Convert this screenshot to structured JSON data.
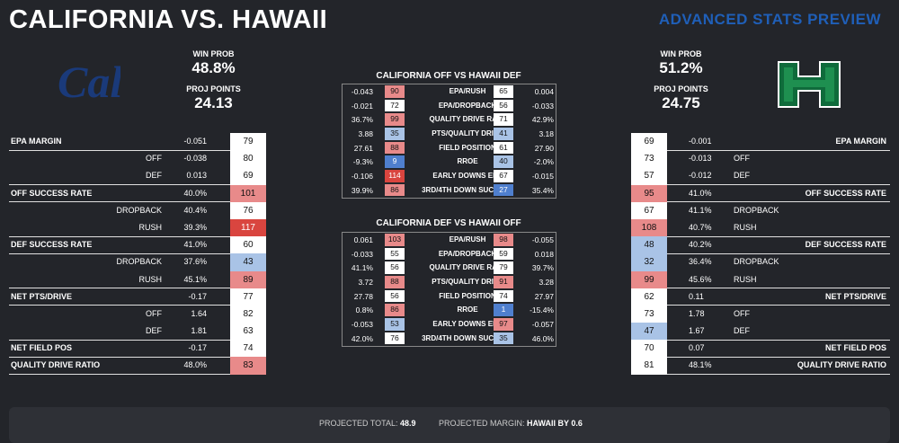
{
  "title": "CALIFORNIA VS. HAWAII",
  "subtitle": "ADVANCED STATS PREVIEW",
  "left": {
    "logo": "Cal",
    "win_prob_label": "WIN PROB",
    "win_prob": "48.8%",
    "proj_points_label": "PROJ POINTS",
    "proj_points": "24.13",
    "rows": [
      {
        "label": "EPA MARGIN",
        "value": "-0.051",
        "rank": "79",
        "main": true,
        "color": ""
      },
      {
        "label": "OFF",
        "value": "-0.038",
        "rank": "80",
        "main": false,
        "color": ""
      },
      {
        "label": "DEF",
        "value": "0.013",
        "rank": "69",
        "main": false,
        "color": ""
      },
      {
        "label": "OFF SUCCESS RATE",
        "value": "40.0%",
        "rank": "101",
        "main": true,
        "color": "r1"
      },
      {
        "label": "DROPBACK",
        "value": "40.4%",
        "rank": "76",
        "main": false,
        "color": ""
      },
      {
        "label": "RUSH",
        "value": "39.3%",
        "rank": "117",
        "main": false,
        "color": "r2"
      },
      {
        "label": "DEF SUCCESS RATE",
        "value": "41.0%",
        "rank": "60",
        "main": true,
        "color": ""
      },
      {
        "label": "DROPBACK",
        "value": "37.6%",
        "rank": "43",
        "main": false,
        "color": "b1"
      },
      {
        "label": "RUSH",
        "value": "45.1%",
        "rank": "89",
        "main": false,
        "color": "r1"
      },
      {
        "label": "NET PTS/DRIVE",
        "value": "-0.17",
        "rank": "77",
        "main": true,
        "color": ""
      },
      {
        "label": "OFF",
        "value": "1.64",
        "rank": "82",
        "main": false,
        "color": ""
      },
      {
        "label": "DEF",
        "value": "1.81",
        "rank": "63",
        "main": false,
        "color": ""
      },
      {
        "label": "NET FIELD POS",
        "value": "-0.17",
        "rank": "74",
        "main": true,
        "color": ""
      },
      {
        "label": "QUALITY DRIVE RATIO",
        "value": "48.0%",
        "rank": "83",
        "main": true,
        "color": "r1"
      }
    ]
  },
  "right": {
    "logo": "H",
    "win_prob_label": "WIN PROB",
    "win_prob": "51.2%",
    "proj_points_label": "PROJ POINTS",
    "proj_points": "24.75",
    "rows": [
      {
        "label": "EPA MARGIN",
        "value": "-0.001",
        "rank": "69",
        "main": true,
        "color": ""
      },
      {
        "label": "OFF",
        "value": "-0.013",
        "rank": "73",
        "main": false,
        "color": ""
      },
      {
        "label": "DEF",
        "value": "-0.012",
        "rank": "57",
        "main": false,
        "color": ""
      },
      {
        "label": "OFF SUCCESS RATE",
        "value": "41.0%",
        "rank": "95",
        "main": true,
        "color": "r1"
      },
      {
        "label": "DROPBACK",
        "value": "41.1%",
        "rank": "67",
        "main": false,
        "color": ""
      },
      {
        "label": "RUSH",
        "value": "40.7%",
        "rank": "108",
        "main": false,
        "color": "r1"
      },
      {
        "label": "DEF SUCCESS RATE",
        "value": "40.2%",
        "rank": "48",
        "main": true,
        "color": "b1"
      },
      {
        "label": "DROPBACK",
        "value": "36.4%",
        "rank": "32",
        "main": false,
        "color": "b1"
      },
      {
        "label": "RUSH",
        "value": "45.6%",
        "rank": "99",
        "main": false,
        "color": "r1"
      },
      {
        "label": "NET PTS/DRIVE",
        "value": "0.11",
        "rank": "62",
        "main": true,
        "color": ""
      },
      {
        "label": "OFF",
        "value": "1.78",
        "rank": "73",
        "main": false,
        "color": ""
      },
      {
        "label": "DEF",
        "value": "1.67",
        "rank": "47",
        "main": false,
        "color": "b1"
      },
      {
        "label": "NET FIELD POS",
        "value": "0.07",
        "rank": "70",
        "main": true,
        "color": ""
      },
      {
        "label": "QUALITY DRIVE RATIO",
        "value": "48.1%",
        "rank": "81",
        "main": true,
        "color": ""
      }
    ]
  },
  "center": [
    {
      "title": "CALIFORNIA OFF VS HAWAII DEF",
      "rows": [
        {
          "lv": "-0.043",
          "lr": "90",
          "lc": "r1",
          "label": "EPA/RUSH",
          "rr": "65",
          "rc": "",
          "rv": "0.004"
        },
        {
          "lv": "-0.021",
          "lr": "72",
          "lc": "",
          "label": "EPA/DROPBACK",
          "rr": "56",
          "rc": "",
          "rv": "-0.033"
        },
        {
          "lv": "36.7%",
          "lr": "99",
          "lc": "r1",
          "label": "QUALITY DRIVE RATE",
          "rr": "71",
          "rc": "",
          "rv": "42.9%"
        },
        {
          "lv": "3.88",
          "lr": "35",
          "lc": "b1",
          "label": "PTS/QUALITY DRIVE",
          "rr": "41",
          "rc": "b1",
          "rv": "3.18"
        },
        {
          "lv": "27.61",
          "lr": "88",
          "lc": "r1",
          "label": "FIELD POSITION",
          "rr": "61",
          "rc": "",
          "rv": "27.90"
        },
        {
          "lv": "-9.3%",
          "lr": "9",
          "lc": "b2",
          "label": "RROE",
          "rr": "40",
          "rc": "b1",
          "rv": "-2.0%"
        },
        {
          "lv": "-0.106",
          "lr": "114",
          "lc": "r2",
          "label": "EARLY DOWNS EPA",
          "rr": "67",
          "rc": "",
          "rv": "-0.015"
        },
        {
          "lv": "39.9%",
          "lr": "86",
          "lc": "r1",
          "label": "3RD/4TH DOWN SUCCESS",
          "rr": "27",
          "rc": "b2",
          "rv": "35.4%"
        }
      ]
    },
    {
      "title": "CALIFORNIA DEF VS HAWAII OFF",
      "rows": [
        {
          "lv": "0.061",
          "lr": "103",
          "lc": "r1",
          "label": "EPA/RUSH",
          "rr": "98",
          "rc": "r1",
          "rv": "-0.055"
        },
        {
          "lv": "-0.033",
          "lr": "55",
          "lc": "",
          "label": "EPA/DROPBACK",
          "rr": "59",
          "rc": "",
          "rv": "0.018"
        },
        {
          "lv": "41.1%",
          "lr": "56",
          "lc": "",
          "label": "QUALITY DRIVE RATE",
          "rr": "79",
          "rc": "",
          "rv": "39.7%"
        },
        {
          "lv": "3.72",
          "lr": "88",
          "lc": "r1",
          "label": "PTS/QUALITY DRIVE",
          "rr": "91",
          "rc": "r1",
          "rv": "3.28"
        },
        {
          "lv": "27.78",
          "lr": "56",
          "lc": "",
          "label": "FIELD POSITION",
          "rr": "74",
          "rc": "",
          "rv": "27.97"
        },
        {
          "lv": "0.8%",
          "lr": "86",
          "lc": "r1",
          "label": "RROE",
          "rr": "1",
          "rc": "b2",
          "rv": "-15.4%"
        },
        {
          "lv": "-0.053",
          "lr": "53",
          "lc": "b1",
          "label": "EARLY DOWNS EPA",
          "rr": "97",
          "rc": "r1",
          "rv": "-0.057"
        },
        {
          "lv": "42.0%",
          "lr": "76",
          "lc": "",
          "label": "3RD/4TH DOWN SUCCESS",
          "rr": "35",
          "rc": "b1",
          "rv": "46.0%"
        }
      ]
    }
  ],
  "footer": {
    "total_label": "PROJECTED TOTAL:",
    "total": "48.9",
    "margin_label": "PROJECTED MARGIN:",
    "margin": "HAWAII BY 0.6"
  }
}
